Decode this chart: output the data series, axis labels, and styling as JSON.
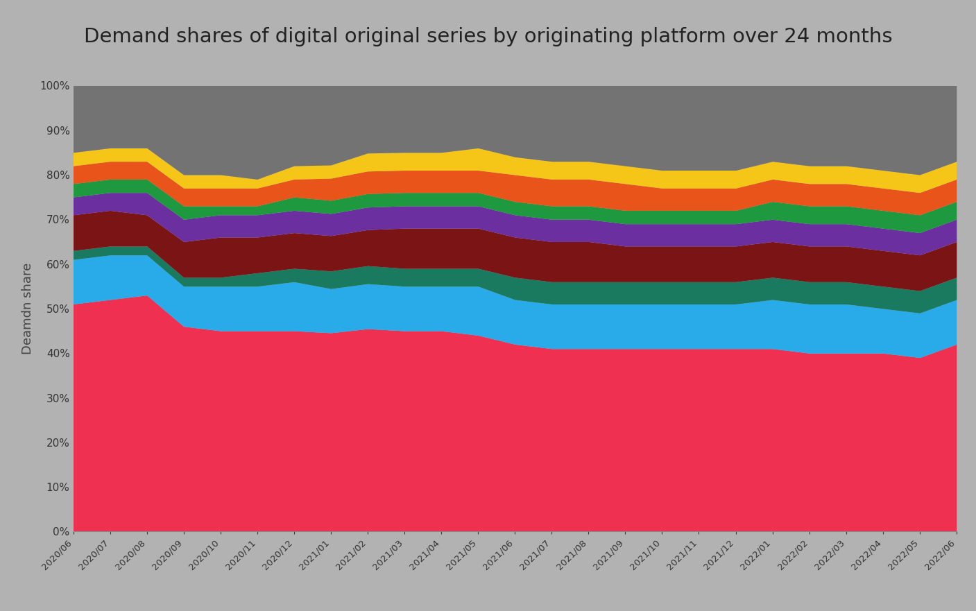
{
  "title": "Demand shares of digital original series by originating platform over 24 months",
  "ylabel": "Deamdn share",
  "background_color": "#b2b2b2",
  "plot_bg_color": "#b2b2b2",
  "title_bg_color": "#d2d2d2",
  "x_labels": [
    "2020/06",
    "2020/07",
    "2020/08",
    "2020/09",
    "2020/10",
    "2020/11",
    "2020/12",
    "2021/01",
    "2021/02",
    "2021/03",
    "2021/04",
    "2021/05",
    "2021/06",
    "2021/07",
    "2021/08",
    "2021/09",
    "2021/10",
    "2021/11",
    "2021/12",
    "2022/01",
    "2022/02",
    "2022/03",
    "2022/04",
    "2022/05",
    "2022/06"
  ],
  "layers": [
    {
      "name": "red",
      "color": "#F03050",
      "values": [
        51,
        52,
        53,
        46,
        45,
        45,
        45,
        45,
        45,
        45,
        45,
        44,
        42,
        41,
        41,
        41,
        41,
        41,
        41,
        41,
        40,
        40,
        40,
        39,
        42
      ]
    },
    {
      "name": "light_blue",
      "color": "#29ABEA",
      "values": [
        10,
        10,
        9,
        9,
        10,
        10,
        11,
        10,
        10,
        10,
        10,
        11,
        10,
        10,
        10,
        10,
        10,
        10,
        10,
        11,
        11,
        11,
        10,
        10,
        10
      ]
    },
    {
      "name": "dark_teal",
      "color": "#1A7A60",
      "values": [
        2,
        2,
        2,
        2,
        2,
        3,
        3,
        4,
        4,
        4,
        4,
        4,
        5,
        5,
        5,
        5,
        5,
        5,
        5,
        5,
        5,
        5,
        5,
        5,
        5
      ]
    },
    {
      "name": "dark_red",
      "color": "#7B1515",
      "values": [
        8,
        8,
        7,
        8,
        9,
        8,
        8,
        8,
        8,
        9,
        9,
        9,
        9,
        9,
        9,
        8,
        8,
        8,
        8,
        8,
        8,
        8,
        8,
        8,
        8
      ]
    },
    {
      "name": "purple",
      "color": "#6B2FA0",
      "values": [
        4,
        4,
        5,
        5,
        5,
        5,
        5,
        5,
        5,
        5,
        5,
        5,
        5,
        5,
        5,
        5,
        5,
        5,
        5,
        5,
        5,
        5,
        5,
        5,
        5
      ]
    },
    {
      "name": "green",
      "color": "#1E9940",
      "values": [
        3,
        3,
        3,
        3,
        2,
        2,
        3,
        3,
        3,
        3,
        3,
        3,
        3,
        3,
        3,
        3,
        3,
        3,
        3,
        4,
        4,
        4,
        4,
        4,
        4
      ]
    },
    {
      "name": "orange_red",
      "color": "#E8541A",
      "values": [
        4,
        4,
        4,
        4,
        4,
        4,
        4,
        5,
        5,
        5,
        5,
        5,
        6,
        6,
        6,
        6,
        5,
        5,
        5,
        5,
        5,
        5,
        5,
        5,
        5
      ]
    },
    {
      "name": "yellow",
      "color": "#F5C518",
      "values": [
        3,
        3,
        3,
        3,
        3,
        2,
        3,
        3,
        4,
        4,
        4,
        5,
        4,
        4,
        4,
        4,
        4,
        4,
        4,
        4,
        4,
        4,
        4,
        4,
        4
      ]
    },
    {
      "name": "gray",
      "color": "#737373",
      "values": [
        15,
        14,
        14,
        20,
        20,
        21,
        18,
        18,
        15,
        15,
        15,
        14,
        16,
        17,
        17,
        18,
        19,
        19,
        19,
        17,
        18,
        18,
        19,
        20,
        17
      ]
    }
  ]
}
